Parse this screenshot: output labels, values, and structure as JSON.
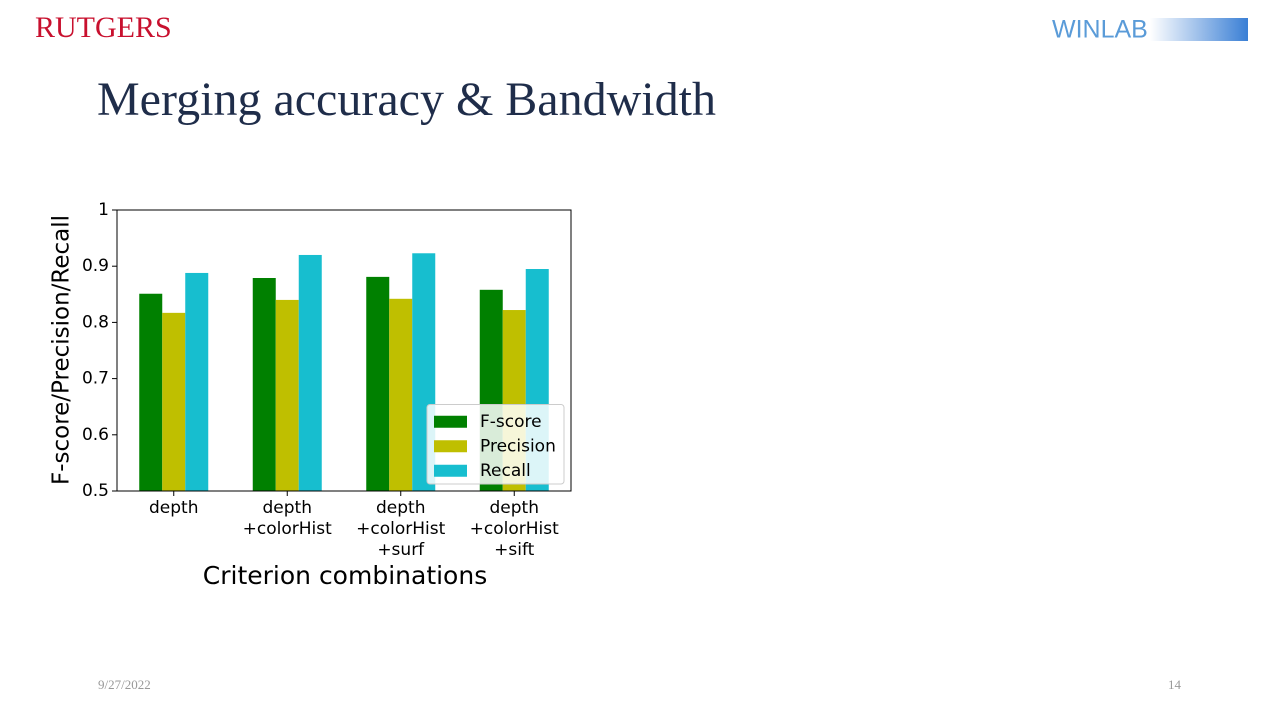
{
  "header": {
    "logo_left": "RUTGERS",
    "logo_right": "WINLAB"
  },
  "title": "Merging accuracy & Bandwidth",
  "chart_data": {
    "type": "bar",
    "x_label": "Criterion combinations",
    "y_label": "F-score/Precision/Recall",
    "categories": [
      "depth",
      "depth\n+colorHist",
      "depth\n+colorHist\n+surf",
      "depth\n+colorHist\n+sift"
    ],
    "series": [
      {
        "name": "F-score",
        "color": "#008000",
        "values": [
          0.851,
          0.879,
          0.881,
          0.858
        ]
      },
      {
        "name": "Precision",
        "color": "#bfbf00",
        "values": [
          0.817,
          0.84,
          0.842,
          0.822
        ]
      },
      {
        "name": "Recall",
        "color": "#17becf",
        "values": [
          0.888,
          0.92,
          0.923,
          0.895
        ]
      }
    ],
    "ylim": [
      0.5,
      1.0
    ],
    "yticks": [
      0.5,
      0.6,
      0.7,
      0.8,
      0.9,
      1.0
    ],
    "legend": "lower right"
  },
  "footer": {
    "date": "9/27/2022",
    "page": "14"
  }
}
